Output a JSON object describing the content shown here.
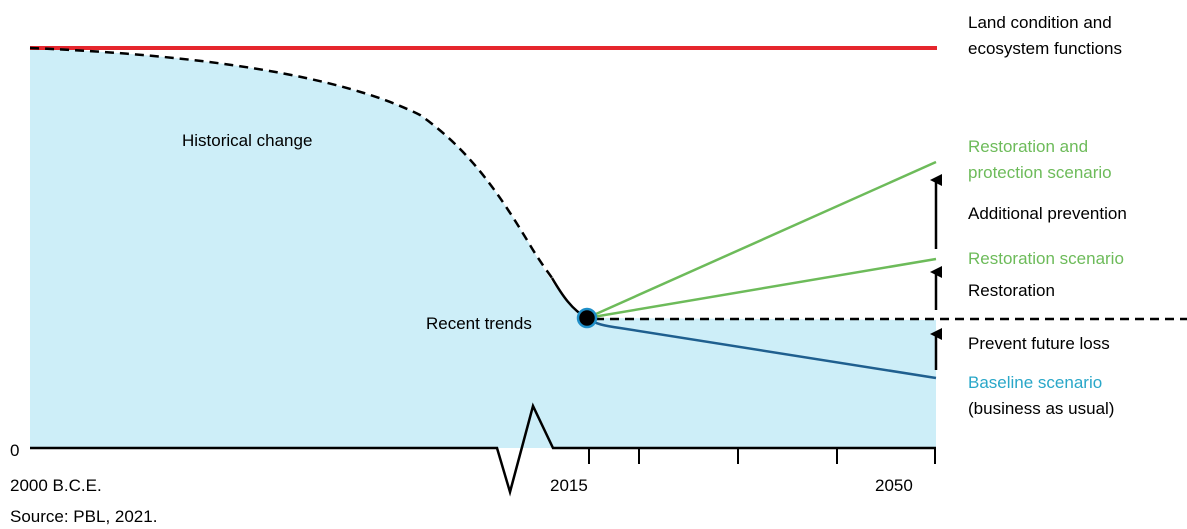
{
  "labels": {
    "top_line_1": "Land condition and",
    "top_line_2": "ecosystem functions",
    "historical_change": "Historical change",
    "recent_trends": "Recent trends",
    "restoration_protection_1": "Restoration and",
    "restoration_protection_2": "protection scenario",
    "additional_prevention": "Additional prevention",
    "restoration_scenario": "Restoration scenario",
    "restoration": "Restoration",
    "prevent_future_loss": "Prevent future loss",
    "baseline_1": "Baseline scenario",
    "baseline_2": "(business as usual)"
  },
  "axis": {
    "zero": "0",
    "start": "2000 B.C.E.",
    "mid": "2015",
    "end": "2050"
  },
  "source": "Source: PBL, 2021.",
  "colors": {
    "reference_line": "#e5262d",
    "area_fill": "#cdeef8",
    "green": "#6dbb5a",
    "blue": "#29a7c8",
    "baseline_line": "#1f5f8f",
    "axis": "#000000"
  }
}
